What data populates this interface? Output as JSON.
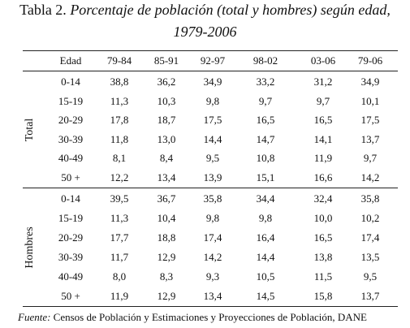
{
  "title": {
    "label": "Tabla 2.",
    "lines": [
      "Porcentaje de población (total y hombres) según edad,",
      "1979-2006"
    ]
  },
  "table": {
    "columns": [
      "Edad",
      "79-84",
      "85-91",
      "92-97",
      "98-02",
      "03-06",
      "79-06"
    ],
    "groups": [
      {
        "name": "Total",
        "rows": [
          [
            "0-14",
            "38,8",
            "36,2",
            "34,9",
            "33,2",
            "31,2",
            "34,9"
          ],
          [
            "15-19",
            "11,3",
            "10,3",
            "9,8",
            "9,7",
            "9,7",
            "10,1"
          ],
          [
            "20-29",
            "17,8",
            "18,7",
            "17,5",
            "16,5",
            "16,5",
            "17,5"
          ],
          [
            "30-39",
            "11,8",
            "13,0",
            "14,4",
            "14,7",
            "14,1",
            "13,7"
          ],
          [
            "40-49",
            "8,1",
            "8,4",
            "9,5",
            "10,8",
            "11,9",
            "9,7"
          ],
          [
            "50 +",
            "12,2",
            "13,4",
            "13,9",
            "15,1",
            "16,6",
            "14,2"
          ]
        ]
      },
      {
        "name": "Hombres",
        "rows": [
          [
            "0-14",
            "39,5",
            "36,7",
            "35,8",
            "34,4",
            "32,4",
            "35,8"
          ],
          [
            "15-19",
            "11,3",
            "10,4",
            "9,8",
            "9,8",
            "10,0",
            "10,2"
          ],
          [
            "20-29",
            "17,7",
            "18,8",
            "17,4",
            "16,4",
            "16,5",
            "17,4"
          ],
          [
            "30-39",
            "11,7",
            "12,9",
            "14,2",
            "14,4",
            "13,8",
            "13,5"
          ],
          [
            "40-49",
            "8,0",
            "8,3",
            "9,3",
            "10,5",
            "11,5",
            "9,5"
          ],
          [
            "50 +",
            "11,9",
            "12,9",
            "13,4",
            "14,5",
            "15,8",
            "13,7"
          ]
        ]
      }
    ]
  },
  "footer": {
    "label": "Fuente:",
    "text": "Censos de Población y Estimaciones y Proyecciones de Población, DANE"
  }
}
